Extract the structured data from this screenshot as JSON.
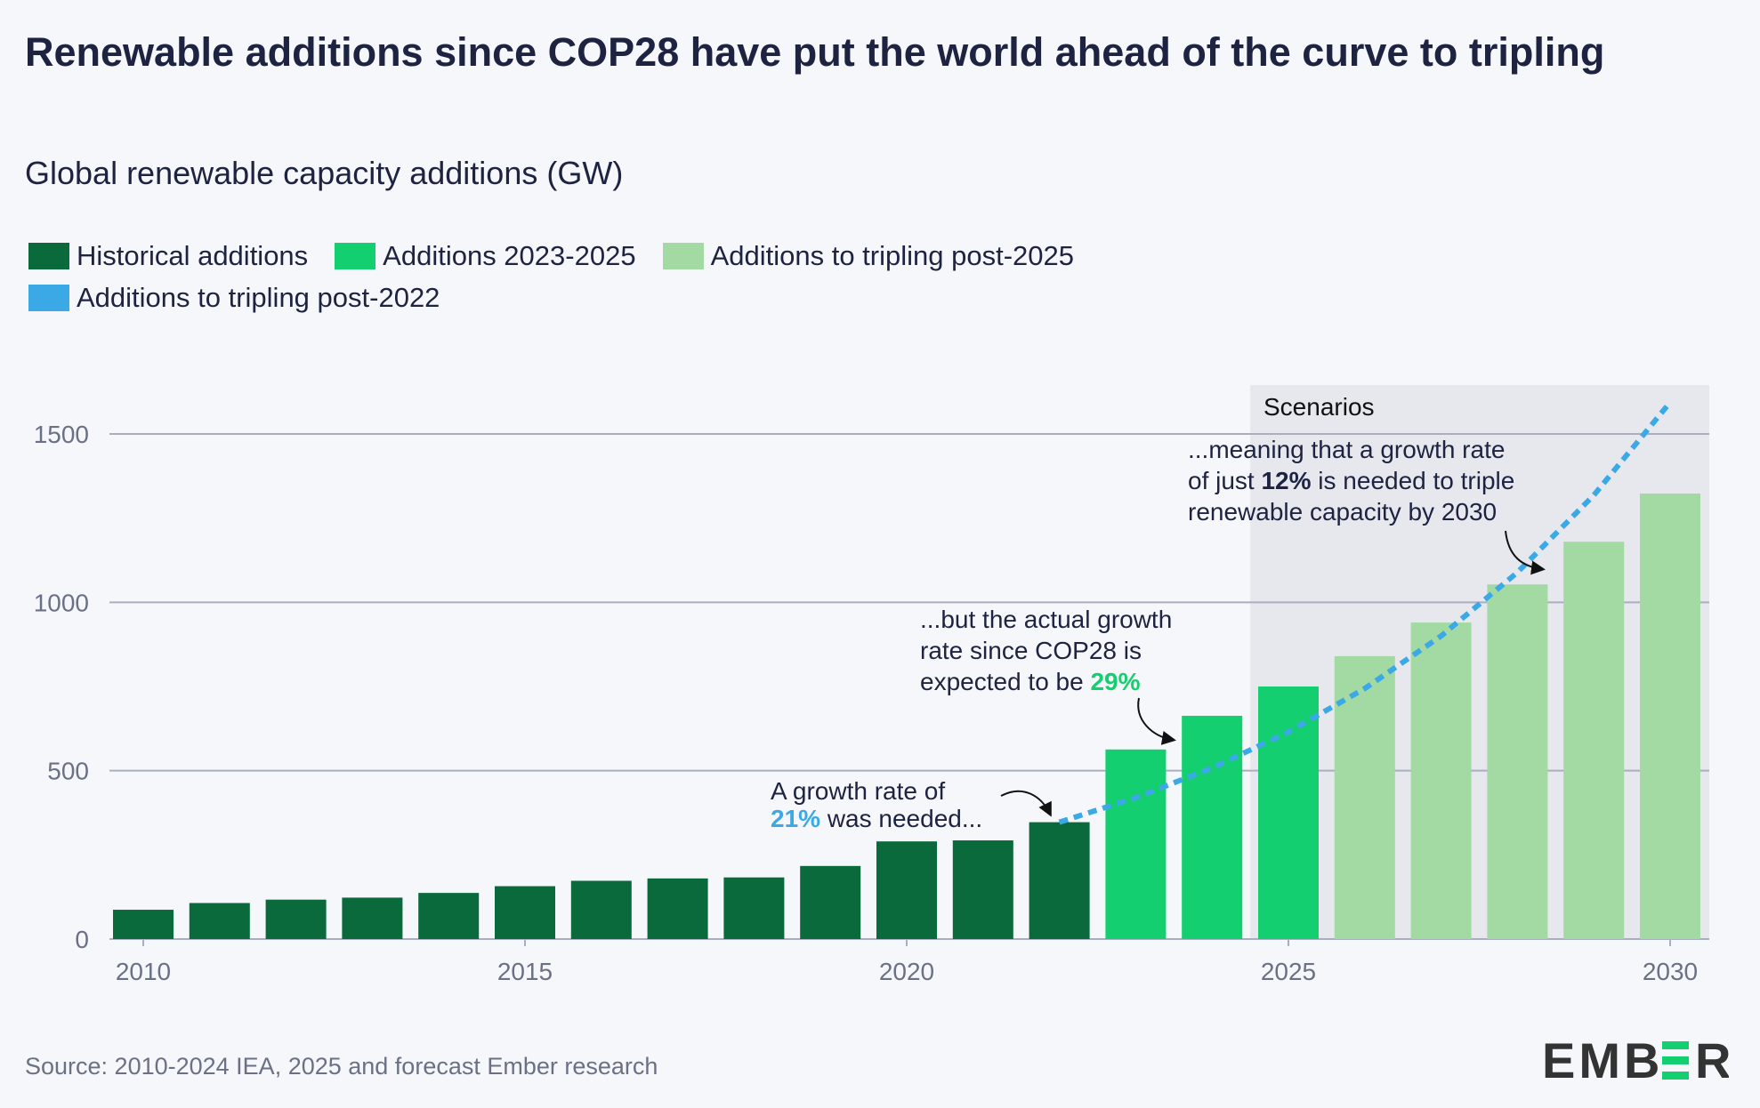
{
  "title": "Renewable additions since COP28 have put the world ahead of the curve to tripling",
  "subtitle": "Global renewable capacity additions (GW)",
  "legend": [
    {
      "label": "Historical additions",
      "color": "#0b6a3c"
    },
    {
      "label": "Additions 2023-2025",
      "color": "#14cf6f"
    },
    {
      "label": "Additions to tripling post-2025",
      "color": "#a3d9a3"
    },
    {
      "label": "Additions to tripling post-2022",
      "color": "#3ba9e6"
    }
  ],
  "source": "Source: 2010-2024 IEA, 2025 and forecast Ember research",
  "logo": "EMBER",
  "chart_data": {
    "type": "bar",
    "title": "Renewable additions since COP28 have put the world ahead of the curve to tripling",
    "ylabel": "Global renewable capacity additions (GW)",
    "ylim": [
      0,
      1650
    ],
    "yticks": [
      0,
      500,
      1000,
      1500
    ],
    "xticks": [
      2010,
      2015,
      2020,
      2025,
      2030
    ],
    "grid": true,
    "legend_position": "top-left",
    "categories": [
      2010,
      2011,
      2012,
      2013,
      2014,
      2015,
      2016,
      2017,
      2018,
      2019,
      2020,
      2021,
      2022,
      2023,
      2024,
      2025,
      2026,
      2027,
      2028,
      2029,
      2030
    ],
    "series": [
      {
        "name": "Historical additions",
        "type": "bar",
        "color": "#0b6a3c",
        "x": [
          2010,
          2011,
          2012,
          2013,
          2014,
          2015,
          2016,
          2017,
          2018,
          2019,
          2020,
          2021,
          2022
        ],
        "values": [
          87,
          107,
          117,
          123,
          137,
          157,
          173,
          180,
          183,
          217,
          290,
          293,
          347
        ]
      },
      {
        "name": "Additions 2023-2025",
        "type": "bar",
        "color": "#14cf6f",
        "x": [
          2023,
          2024,
          2025
        ],
        "values": [
          563,
          663,
          750
        ]
      },
      {
        "name": "Additions to tripling post-2025",
        "type": "bar",
        "color": "#a3d9a3",
        "x": [
          2026,
          2027,
          2028,
          2029,
          2030
        ],
        "values": [
          840,
          940,
          1053,
          1180,
          1323
        ]
      },
      {
        "name": "Additions to tripling post-2022",
        "type": "line",
        "style": "dashed",
        "color": "#3ba9e6",
        "x": [
          2022,
          2023,
          2024,
          2025,
          2026,
          2027,
          2028,
          2029,
          2030
        ],
        "values": [
          347,
          420,
          508,
          615,
          744,
          900,
          1089,
          1318,
          1594
        ]
      }
    ],
    "shaded_region": {
      "label": "Scenarios",
      "from": 2024.5,
      "to": 2030.5
    },
    "annotations": {
      "a1_line1": "A growth rate of",
      "a1_pct": "21%",
      "a1_rest": " was needed...",
      "a2_line1": "...but the actual growth",
      "a2_line2": "rate since COP28 is",
      "a2_line3": "expected to be ",
      "a2_pct": "29%",
      "a3_line1": "...meaning that a growth rate",
      "a3_pre": "of just ",
      "a3_pct": "12%",
      "a3_post": " is needed to triple",
      "a3_line3": "renewable capacity by 2030"
    }
  }
}
